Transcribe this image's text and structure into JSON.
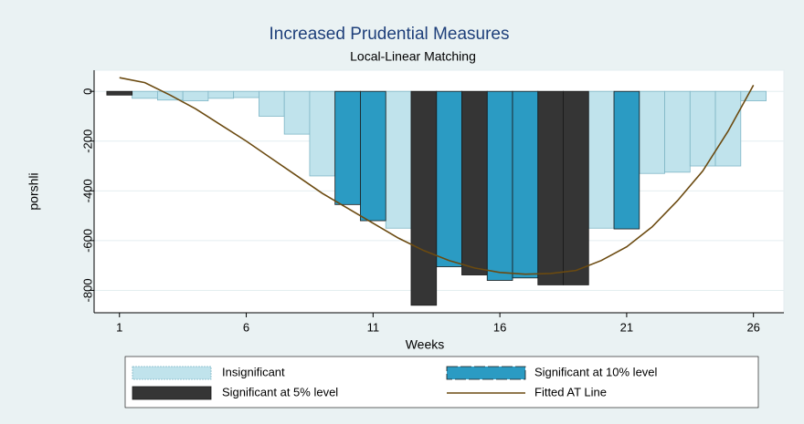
{
  "chart_data": {
    "type": "bar",
    "title": "Increased Prudential Measures",
    "subtitle": "Local-Linear Matching",
    "x_label": "Weeks",
    "y_label": "porshli",
    "x": [
      1,
      2,
      3,
      4,
      5,
      6,
      7,
      8,
      9,
      10,
      11,
      12,
      13,
      14,
      15,
      16,
      17,
      18,
      19,
      20,
      21,
      22,
      23,
      24,
      25,
      26
    ],
    "xlim": [
      0,
      27.2
    ],
    "xticks": [
      1,
      6,
      11,
      16,
      21,
      26
    ],
    "ylim": [
      -890,
      85
    ],
    "yticks": [
      0,
      -200,
      -400,
      -600,
      -800
    ],
    "grid": true,
    "legend": "bottom",
    "series": [
      {
        "name": "Insignificant",
        "type": "bar",
        "color": "#c0e3ec",
        "values": [
          null,
          -28,
          -35,
          -38,
          -28,
          -25,
          -100,
          -172,
          -340,
          null,
          null,
          -550,
          null,
          null,
          null,
          null,
          null,
          null,
          null,
          -550,
          null,
          -330,
          -325,
          -300,
          -300,
          -38
        ]
      },
      {
        "name": "Significant at 10% level",
        "type": "bar",
        "color": "#2b9bc3",
        "values": [
          null,
          null,
          null,
          null,
          null,
          null,
          null,
          null,
          null,
          -455,
          -520,
          null,
          null,
          -705,
          null,
          -760,
          -750,
          null,
          null,
          null,
          -553,
          null,
          null,
          null,
          null,
          null
        ]
      },
      {
        "name": "Significant at 5% level",
        "type": "bar",
        "color": "#353535",
        "values": [
          -15,
          null,
          null,
          null,
          null,
          null,
          null,
          null,
          null,
          null,
          null,
          null,
          -860,
          null,
          -738,
          null,
          null,
          -778,
          -778,
          null,
          null,
          null,
          null,
          null,
          null,
          null
        ]
      },
      {
        "name": "Fitted AT Line",
        "type": "line",
        "color": "#6b4a10",
        "values": [
          55,
          35,
          -15,
          -70,
          -135,
          -200,
          -270,
          -340,
          -410,
          -470,
          -530,
          -590,
          -640,
          -680,
          -710,
          -728,
          -735,
          -732,
          -720,
          -680,
          -625,
          -545,
          -440,
          -320,
          -160,
          25
        ]
      }
    ]
  }
}
